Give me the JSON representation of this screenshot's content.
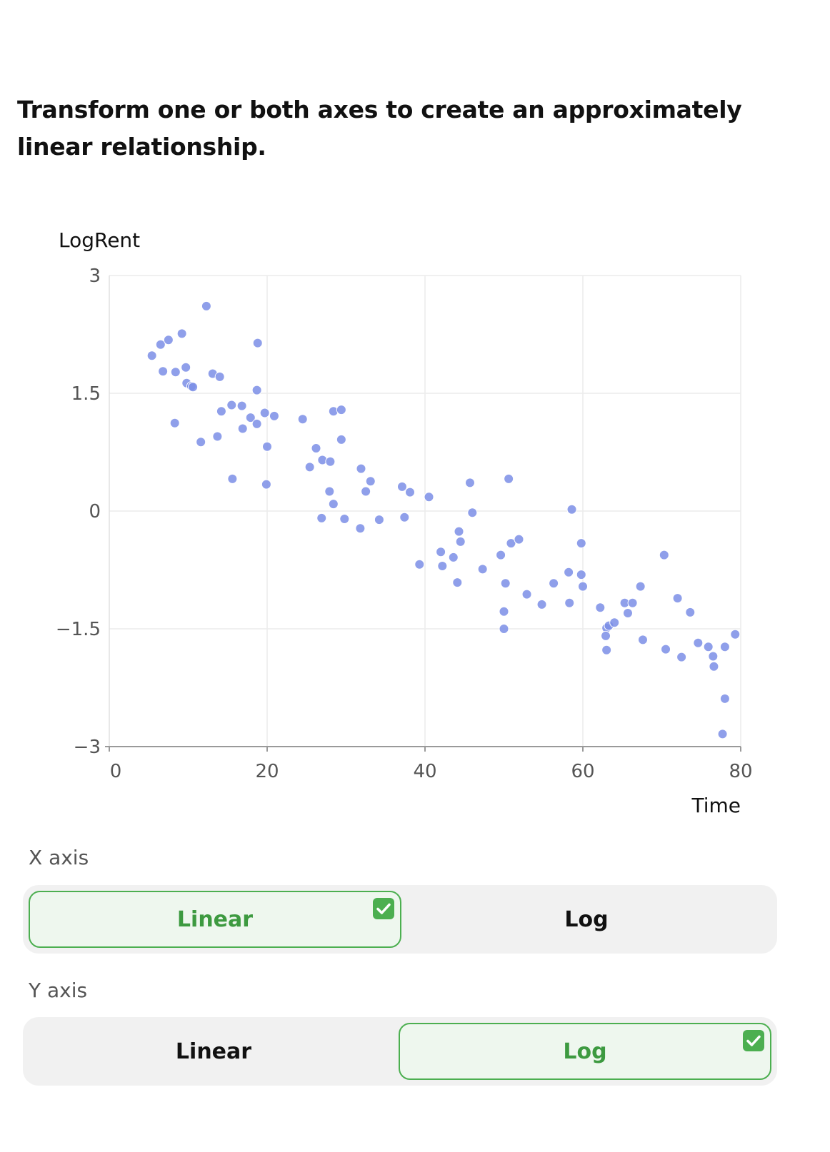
{
  "prompt": "Transform one or both axes to create an approximately linear relationship.",
  "x_axis_control": {
    "label": "X axis",
    "options": [
      {
        "label": "Linear",
        "selected": true
      },
      {
        "label": "Log",
        "selected": false
      }
    ]
  },
  "y_axis_control": {
    "label": "Y axis",
    "options": [
      {
        "label": "Linear",
        "selected": false
      },
      {
        "label": "Log",
        "selected": true
      }
    ]
  },
  "colors": {
    "point": "#7b8ee6",
    "accent": "#4caf50",
    "accent_text": "#3d9a40",
    "selected_bg": "#eef7ee",
    "control_bg": "#f1f1f1"
  },
  "icons": {
    "selected_marker": "check-icon"
  },
  "chart_data": {
    "type": "scatter",
    "xlabel": "Time",
    "ylabel": "LogRent",
    "xlim": [
      0,
      80
    ],
    "ylim": [
      -3,
      3
    ],
    "x_ticks": [
      "0",
      "20",
      "40",
      "60",
      "80"
    ],
    "y_ticks": [
      "3",
      "1.5",
      "0",
      "−1.5",
      "−3"
    ],
    "x_tick_values": [
      0,
      20,
      40,
      60,
      80
    ],
    "y_tick_values": [
      3,
      1.5,
      0,
      -1.5,
      -3
    ],
    "grid": true,
    "points": [
      [
        5.4,
        1.98
      ],
      [
        6.5,
        2.12
      ],
      [
        7.5,
        2.18
      ],
      [
        9.2,
        2.26
      ],
      [
        12.3,
        2.61
      ],
      [
        18.8,
        2.14
      ],
      [
        6.8,
        1.78
      ],
      [
        8.4,
        1.77
      ],
      [
        9.7,
        1.83
      ],
      [
        9.8,
        1.63
      ],
      [
        10.4,
        1.59
      ],
      [
        10.6,
        1.58
      ],
      [
        13.1,
        1.75
      ],
      [
        14.0,
        1.71
      ],
      [
        18.7,
        1.54
      ],
      [
        8.3,
        1.12
      ],
      [
        11.6,
        0.88
      ],
      [
        13.7,
        0.95
      ],
      [
        14.2,
        1.27
      ],
      [
        15.5,
        1.35
      ],
      [
        16.8,
        1.34
      ],
      [
        17.9,
        1.19
      ],
      [
        18.7,
        1.11
      ],
      [
        19.7,
        1.25
      ],
      [
        20.9,
        1.21
      ],
      [
        16.9,
        1.05
      ],
      [
        20.0,
        0.82
      ],
      [
        15.6,
        0.41
      ],
      [
        19.9,
        0.34
      ],
      [
        24.5,
        1.17
      ],
      [
        26.2,
        0.8
      ],
      [
        25.4,
        0.56
      ],
      [
        27.0,
        0.65
      ],
      [
        28.0,
        0.63
      ],
      [
        28.4,
        1.27
      ],
      [
        29.4,
        1.29
      ],
      [
        29.4,
        0.91
      ],
      [
        27.9,
        0.25
      ],
      [
        28.4,
        0.09
      ],
      [
        26.9,
        -0.09
      ],
      [
        29.8,
        -0.1
      ],
      [
        31.9,
        0.54
      ],
      [
        33.1,
        0.38
      ],
      [
        32.5,
        0.25
      ],
      [
        31.8,
        -0.22
      ],
      [
        34.2,
        -0.11
      ],
      [
        37.1,
        0.31
      ],
      [
        38.1,
        0.24
      ],
      [
        40.5,
        0.18
      ],
      [
        37.4,
        -0.08
      ],
      [
        39.3,
        -0.68
      ],
      [
        42.0,
        -0.52
      ],
      [
        42.2,
        -0.7
      ],
      [
        43.6,
        -0.59
      ],
      [
        44.3,
        -0.26
      ],
      [
        44.5,
        -0.39
      ],
      [
        44.1,
        -0.91
      ],
      [
        45.7,
        0.36
      ],
      [
        46.0,
        -0.02
      ],
      [
        47.3,
        -0.74
      ],
      [
        50.6,
        0.41
      ],
      [
        49.6,
        -0.56
      ],
      [
        50.2,
        -0.92
      ],
      [
        50.0,
        -1.28
      ],
      [
        50.0,
        -1.5
      ],
      [
        50.9,
        -0.41
      ],
      [
        51.9,
        -0.36
      ],
      [
        52.9,
        -1.06
      ],
      [
        54.8,
        -1.19
      ],
      [
        56.3,
        -0.92
      ],
      [
        58.2,
        -0.78
      ],
      [
        58.3,
        -1.17
      ],
      [
        58.6,
        0.02
      ],
      [
        59.8,
        -0.41
      ],
      [
        59.8,
        -0.81
      ],
      [
        60.0,
        -0.96
      ],
      [
        62.2,
        -1.23
      ],
      [
        63.0,
        -1.49
      ],
      [
        63.3,
        -1.46
      ],
      [
        64.0,
        -1.42
      ],
      [
        62.9,
        -1.59
      ],
      [
        63.0,
        -1.77
      ],
      [
        65.3,
        -1.17
      ],
      [
        65.7,
        -1.3
      ],
      [
        66.3,
        -1.17
      ],
      [
        67.3,
        -0.96
      ],
      [
        67.6,
        -1.64
      ],
      [
        70.3,
        -0.56
      ],
      [
        70.5,
        -1.76
      ],
      [
        72.0,
        -1.11
      ],
      [
        72.5,
        -1.86
      ],
      [
        73.6,
        -1.29
      ],
      [
        74.6,
        -1.68
      ],
      [
        75.9,
        -1.73
      ],
      [
        76.5,
        -1.85
      ],
      [
        76.6,
        -1.98
      ],
      [
        77.7,
        -2.84
      ],
      [
        78.0,
        -2.39
      ],
      [
        78.0,
        -1.73
      ],
      [
        79.3,
        -1.57
      ]
    ]
  }
}
